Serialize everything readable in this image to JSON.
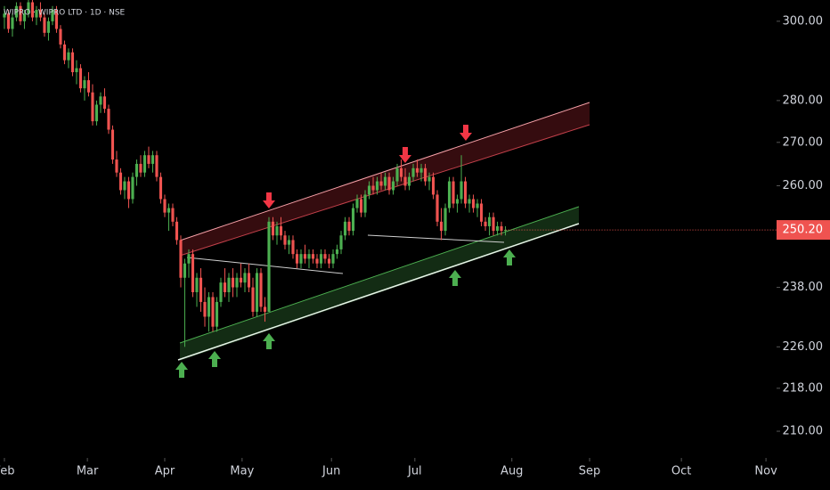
{
  "chart_data": {
    "type": "candlestick",
    "title": "WIPRO · WIPRO LTD · 1D · NSE",
    "up_color": "#4caf50",
    "down_color": "#ef5350",
    "log_scale": true,
    "ylim": [
      205.5,
      305.6
    ],
    "yticks": [
      {
        "value": 300,
        "label": "300.00"
      },
      {
        "value": 280,
        "label": "280.00"
      },
      {
        "value": 270,
        "label": "270.00"
      },
      {
        "value": 260,
        "label": "260.00"
      },
      {
        "value": 238,
        "label": "238.00"
      },
      {
        "value": 226,
        "label": "226.00"
      },
      {
        "value": 218,
        "label": "218.00"
      },
      {
        "value": 210,
        "label": "210.00"
      }
    ],
    "last_price": {
      "value": 250.2,
      "label": "250.20"
    },
    "xlim": [
      -1.1,
      192.2
    ],
    "xticks": [
      {
        "value": 0,
        "label": "Feb"
      },
      {
        "value": 20.7,
        "label": "Mar"
      },
      {
        "value": 40,
        "label": "Apr"
      },
      {
        "value": 59.3,
        "label": "May"
      },
      {
        "value": 81.6,
        "label": "Jun"
      },
      {
        "value": 102.4,
        "label": "Jul"
      },
      {
        "value": 126.6,
        "label": "Aug"
      },
      {
        "value": 146,
        "label": "Sep"
      },
      {
        "value": 168.9,
        "label": "Oct"
      },
      {
        "value": 190,
        "label": "Nov"
      }
    ],
    "ohlc": [
      [
        301,
        304,
        298,
        302
      ],
      [
        302,
        303,
        297,
        298
      ],
      [
        298,
        302,
        296,
        301
      ],
      [
        301,
        305,
        300,
        304
      ],
      [
        304,
        305,
        299,
        300
      ],
      [
        300,
        303,
        298,
        302
      ],
      [
        302,
        306,
        301,
        305
      ],
      [
        305,
        306,
        300,
        301
      ],
      [
        301,
        304,
        299,
        303
      ],
      [
        303,
        305,
        300,
        301
      ],
      [
        301,
        302,
        296,
        297
      ],
      [
        297,
        301,
        295,
        300
      ],
      [
        300,
        304,
        299,
        303
      ],
      [
        303,
        304,
        297,
        298
      ],
      [
        298,
        299,
        293,
        294
      ],
      [
        294,
        295,
        289,
        290
      ],
      [
        290,
        293,
        288,
        292
      ],
      [
        292,
        293,
        286,
        287
      ],
      [
        287,
        290,
        284,
        288
      ],
      [
        288,
        289,
        282,
        283
      ],
      [
        283,
        286,
        280,
        285
      ],
      [
        285,
        287,
        281,
        282
      ],
      [
        282,
        284,
        274,
        275
      ],
      [
        275,
        280,
        274,
        279
      ],
      [
        279,
        282,
        277,
        281
      ],
      [
        281,
        283,
        277,
        278
      ],
      [
        278,
        279,
        272,
        273
      ],
      [
        273,
        274,
        265,
        266
      ],
      [
        266,
        268,
        262,
        263
      ],
      [
        263,
        264,
        258,
        259
      ],
      [
        259,
        262,
        257,
        261
      ],
      [
        261,
        262,
        255,
        257
      ],
      [
        257,
        263,
        256,
        262
      ],
      [
        262,
        266,
        260,
        265
      ],
      [
        265,
        267,
        262,
        263
      ],
      [
        263,
        268,
        262,
        267
      ],
      [
        267,
        269,
        264,
        265
      ],
      [
        265,
        268,
        263,
        267
      ],
      [
        267,
        268,
        261,
        262
      ],
      [
        262,
        263,
        256,
        257
      ],
      [
        257,
        258,
        253,
        254
      ],
      [
        254,
        256,
        250,
        255
      ],
      [
        255,
        256,
        251,
        252
      ],
      [
        252,
        253,
        247,
        248
      ],
      [
        248,
        249,
        238,
        240
      ],
      [
        240,
        244,
        226,
        243
      ],
      [
        243,
        246,
        240,
        245
      ],
      [
        245,
        246,
        236,
        237
      ],
      [
        237,
        241,
        234,
        240
      ],
      [
        240,
        242,
        233,
        235
      ],
      [
        235,
        238,
        230,
        232
      ],
      [
        232,
        237,
        229,
        236
      ],
      [
        236,
        237,
        229,
        230
      ],
      [
        230,
        236,
        229,
        235
      ],
      [
        235,
        240,
        234,
        239
      ],
      [
        239,
        242,
        236,
        237
      ],
      [
        237,
        241,
        235,
        240
      ],
      [
        240,
        242,
        236,
        238
      ],
      [
        238,
        241,
        236,
        240
      ],
      [
        240,
        243,
        238,
        239
      ],
      [
        239,
        242,
        237,
        241
      ],
      [
        241,
        243,
        237,
        238
      ],
      [
        238,
        240,
        232,
        233
      ],
      [
        233,
        242,
        232,
        241
      ],
      [
        241,
        242,
        233,
        234
      ],
      [
        234,
        236,
        231,
        233
      ],
      [
        233,
        253,
        233,
        252
      ],
      [
        252,
        253,
        248,
        249
      ],
      [
        249,
        252,
        247,
        251
      ],
      [
        251,
        253,
        248,
        249
      ],
      [
        249,
        250,
        246,
        247
      ],
      [
        247,
        249,
        245,
        248
      ],
      [
        248,
        249,
        244,
        245
      ],
      [
        245,
        246,
        242,
        243
      ],
      [
        243,
        246,
        242,
        245
      ],
      [
        245,
        247,
        243,
        244
      ],
      [
        244,
        246,
        242,
        245
      ],
      [
        245,
        246,
        243,
        244
      ],
      [
        244,
        245,
        242,
        243
      ],
      [
        243,
        246,
        242,
        245
      ],
      [
        245,
        246,
        243,
        244
      ],
      [
        244,
        245,
        242,
        243
      ],
      [
        243,
        246,
        242,
        245
      ],
      [
        245,
        247,
        244,
        246
      ],
      [
        246,
        250,
        245,
        249
      ],
      [
        249,
        253,
        248,
        252
      ],
      [
        252,
        253,
        249,
        250
      ],
      [
        250,
        256,
        249,
        255
      ],
      [
        255,
        258,
        254,
        257
      ],
      [
        257,
        258,
        253,
        254
      ],
      [
        254,
        259,
        253,
        258
      ],
      [
        258,
        261,
        257,
        260
      ],
      [
        260,
        262,
        258,
        259
      ],
      [
        259,
        262,
        258,
        261
      ],
      [
        261,
        263,
        259,
        260
      ],
      [
        260,
        263,
        259,
        262
      ],
      [
        262,
        263,
        258,
        259
      ],
      [
        259,
        262,
        258,
        261
      ],
      [
        261,
        265,
        260,
        264
      ],
      [
        264,
        266,
        261,
        262
      ],
      [
        262,
        264,
        259,
        260
      ],
      [
        260,
        263,
        259,
        262
      ],
      [
        262,
        265,
        261,
        264
      ],
      [
        264,
        266,
        262,
        263
      ],
      [
        263,
        265,
        261,
        264
      ],
      [
        264,
        265,
        260,
        261
      ],
      [
        261,
        263,
        259,
        262
      ],
      [
        262,
        263,
        257,
        258
      ],
      [
        258,
        259,
        251,
        252
      ],
      [
        252,
        255,
        248,
        250
      ],
      [
        250,
        256,
        249,
        255
      ],
      [
        255,
        262,
        254,
        261
      ],
      [
        261,
        262,
        255,
        256
      ],
      [
        256,
        258,
        254,
        257
      ],
      [
        257,
        267,
        256,
        261
      ],
      [
        261,
        262,
        255,
        256
      ],
      [
        256,
        258,
        254,
        257
      ],
      [
        257,
        258,
        254,
        255
      ],
      [
        255,
        257,
        253,
        256
      ],
      [
        256,
        257,
        251,
        252
      ],
      [
        252,
        253,
        250,
        251
      ],
      [
        251,
        254,
        249,
        253
      ],
      [
        253,
        254,
        249,
        250
      ],
      [
        250,
        252,
        249,
        251
      ],
      [
        251,
        252,
        249,
        250
      ],
      [
        250,
        251,
        249,
        250.2
      ]
    ]
  }
}
